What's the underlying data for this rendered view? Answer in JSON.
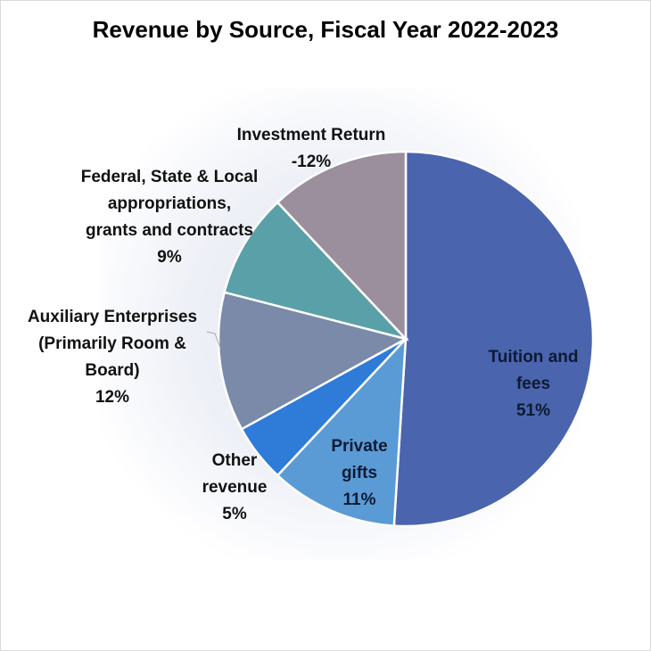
{
  "chart_data": {
    "type": "pie",
    "title": "Revenue by Source, Fiscal Year 2022-2023",
    "slices": [
      {
        "label": [
          "Tuition and",
          "fees",
          "51%"
        ],
        "value": 51,
        "color": "#4a64ad",
        "label_inside": true
      },
      {
        "label": [
          "Private",
          "gifts",
          "11%"
        ],
        "value": 11,
        "color": "#5b9bd5",
        "label_inside": true
      },
      {
        "label": [
          "Other",
          "revenue",
          "5%"
        ],
        "value": 5,
        "color": "#2e7bd8",
        "label_inside": false
      },
      {
        "label": [
          "Auxiliary Enterprises",
          "(Primarily Room &",
          "Board)",
          "12%"
        ],
        "value": 12,
        "color": "#7a8aa8",
        "label_inside": false
      },
      {
        "label": [
          "Federal, State & Local",
          "appropriations,",
          "grants and contracts",
          "9%"
        ],
        "value": 9,
        "color": "#5aa0a8",
        "label_inside": false
      },
      {
        "label": [
          "Investment Return",
          "-12%"
        ],
        "value": 12,
        "color": "#9b8f9e",
        "label_inside": false
      }
    ],
    "legend": "none"
  }
}
